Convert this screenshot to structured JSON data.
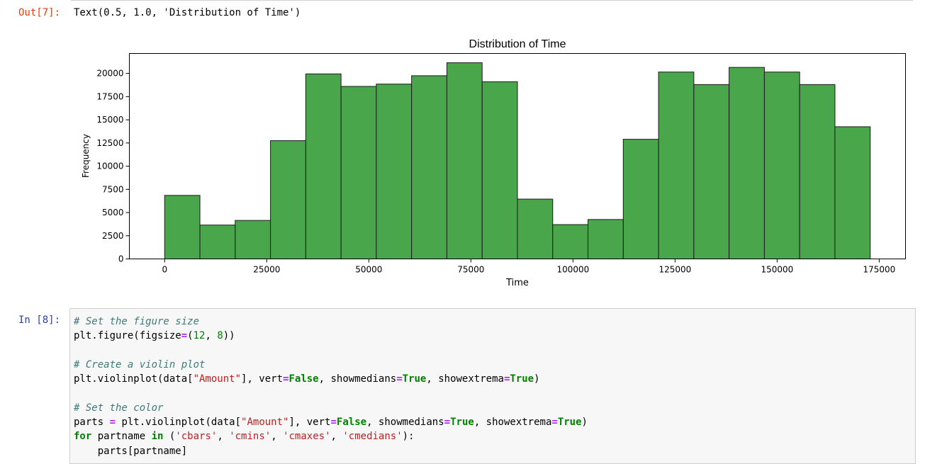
{
  "out_cell": {
    "prompt": "Out[7]:",
    "text": "Text(0.5, 1.0, 'Distribution of Time')"
  },
  "chart_data": {
    "type": "bar",
    "title": "Distribution of Time",
    "xlabel": "Time",
    "ylabel": "Frequency",
    "bar_color": "#4aa64a",
    "edge_color": "#1a1a1a",
    "bin_edges": [
      0,
      8640,
      17280,
      25920,
      34560,
      43200,
      51840,
      60480,
      69120,
      77760,
      86400,
      95040,
      103680,
      112320,
      120960,
      129600,
      138240,
      146880,
      155520,
      164160,
      172800
    ],
    "values": [
      6850,
      3650,
      4150,
      12750,
      19950,
      18600,
      18850,
      19750,
      21150,
      19100,
      6450,
      3700,
      4250,
      12900,
      20150,
      18800,
      20650,
      20150,
      18800,
      14250
    ],
    "xlim": [
      -8640,
      181440
    ],
    "ylim": [
      0,
      22150
    ],
    "xticks": [
      0,
      25000,
      50000,
      75000,
      100000,
      125000,
      150000,
      175000
    ],
    "yticks": [
      0,
      2500,
      5000,
      7500,
      10000,
      12500,
      15000,
      17500,
      20000
    ],
    "grid": false
  },
  "in_cell": {
    "prompt": "In [8]:",
    "lines": [
      [
        {
          "t": "# Set the figure size",
          "c": "cm"
        }
      ],
      [
        {
          "t": "plt.figure(figsize",
          "c": ""
        },
        {
          "t": "=",
          "c": "op"
        },
        {
          "t": "(",
          "c": ""
        },
        {
          "t": "12",
          "c": "num"
        },
        {
          "t": ", ",
          "c": ""
        },
        {
          "t": "8",
          "c": "num"
        },
        {
          "t": "))",
          "c": ""
        }
      ],
      [],
      [
        {
          "t": "# Create a violin plot",
          "c": "cm"
        }
      ],
      [
        {
          "t": "plt.violinplot(data[",
          "c": ""
        },
        {
          "t": "\"Amount\"",
          "c": "str"
        },
        {
          "t": "], vert",
          "c": ""
        },
        {
          "t": "=",
          "c": "op"
        },
        {
          "t": "False",
          "c": "kw"
        },
        {
          "t": ", showmedians",
          "c": ""
        },
        {
          "t": "=",
          "c": "op"
        },
        {
          "t": "True",
          "c": "kw"
        },
        {
          "t": ", showextrema",
          "c": ""
        },
        {
          "t": "=",
          "c": "op"
        },
        {
          "t": "True",
          "c": "kw"
        },
        {
          "t": ")",
          "c": ""
        }
      ],
      [],
      [
        {
          "t": "# Set the color",
          "c": "cm"
        }
      ],
      [
        {
          "t": "parts ",
          "c": ""
        },
        {
          "t": "=",
          "c": "op"
        },
        {
          "t": " plt.violinplot(data[",
          "c": ""
        },
        {
          "t": "\"Amount\"",
          "c": "str"
        },
        {
          "t": "], vert",
          "c": ""
        },
        {
          "t": "=",
          "c": "op"
        },
        {
          "t": "False",
          "c": "kw"
        },
        {
          "t": ", showmedians",
          "c": ""
        },
        {
          "t": "=",
          "c": "op"
        },
        {
          "t": "True",
          "c": "kw"
        },
        {
          "t": ", showextrema",
          "c": ""
        },
        {
          "t": "=",
          "c": "op"
        },
        {
          "t": "True",
          "c": "kw"
        },
        {
          "t": ")",
          "c": ""
        }
      ],
      [
        {
          "t": "for",
          "c": "kw"
        },
        {
          "t": " partname ",
          "c": ""
        },
        {
          "t": "in",
          "c": "kw"
        },
        {
          "t": " (",
          "c": ""
        },
        {
          "t": "'cbars'",
          "c": "str"
        },
        {
          "t": ", ",
          "c": ""
        },
        {
          "t": "'cmins'",
          "c": "str"
        },
        {
          "t": ", ",
          "c": ""
        },
        {
          "t": "'cmaxes'",
          "c": "str"
        },
        {
          "t": ", ",
          "c": ""
        },
        {
          "t": "'cmedians'",
          "c": "str"
        },
        {
          "t": "):",
          "c": ""
        }
      ],
      [
        {
          "t": "    parts[partname]",
          "c": ""
        }
      ]
    ]
  }
}
